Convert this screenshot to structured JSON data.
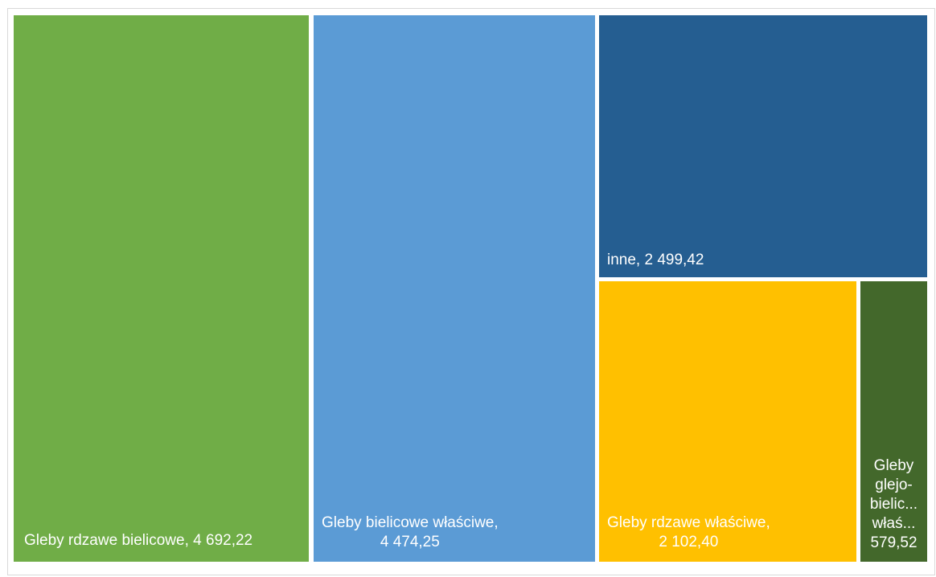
{
  "chart_data": {
    "type": "treemap",
    "items": [
      {
        "name": "Gleby rdzawe bielicowe",
        "value": 4692.22,
        "label_lines": [
          "Gleby rdzawe bielicowe, 4 692,22"
        ],
        "color": "#70AD47"
      },
      {
        "name": "Gleby bielicowe właściwe",
        "value": 4474.25,
        "label_lines": [
          "Gleby bielicowe właściwe,",
          "4 474,25"
        ],
        "color": "#5B9BD5"
      },
      {
        "name": "inne",
        "value": 2499.42,
        "label_lines": [
          "inne, 2 499,42"
        ],
        "color": "#255E91"
      },
      {
        "name": "Gleby rdzawe właściwe",
        "value": 2102.4,
        "label_lines": [
          "Gleby rdzawe właściwe,",
          "2 102,40"
        ],
        "color": "#FFC000"
      },
      {
        "name": "Gleby glejo-bielicowe właściwe",
        "value": 579.52,
        "label_lines": [
          "Gleby",
          "glejo-",
          "bielic...",
          "właś...",
          "579,52"
        ],
        "color": "#43682B"
      }
    ]
  }
}
